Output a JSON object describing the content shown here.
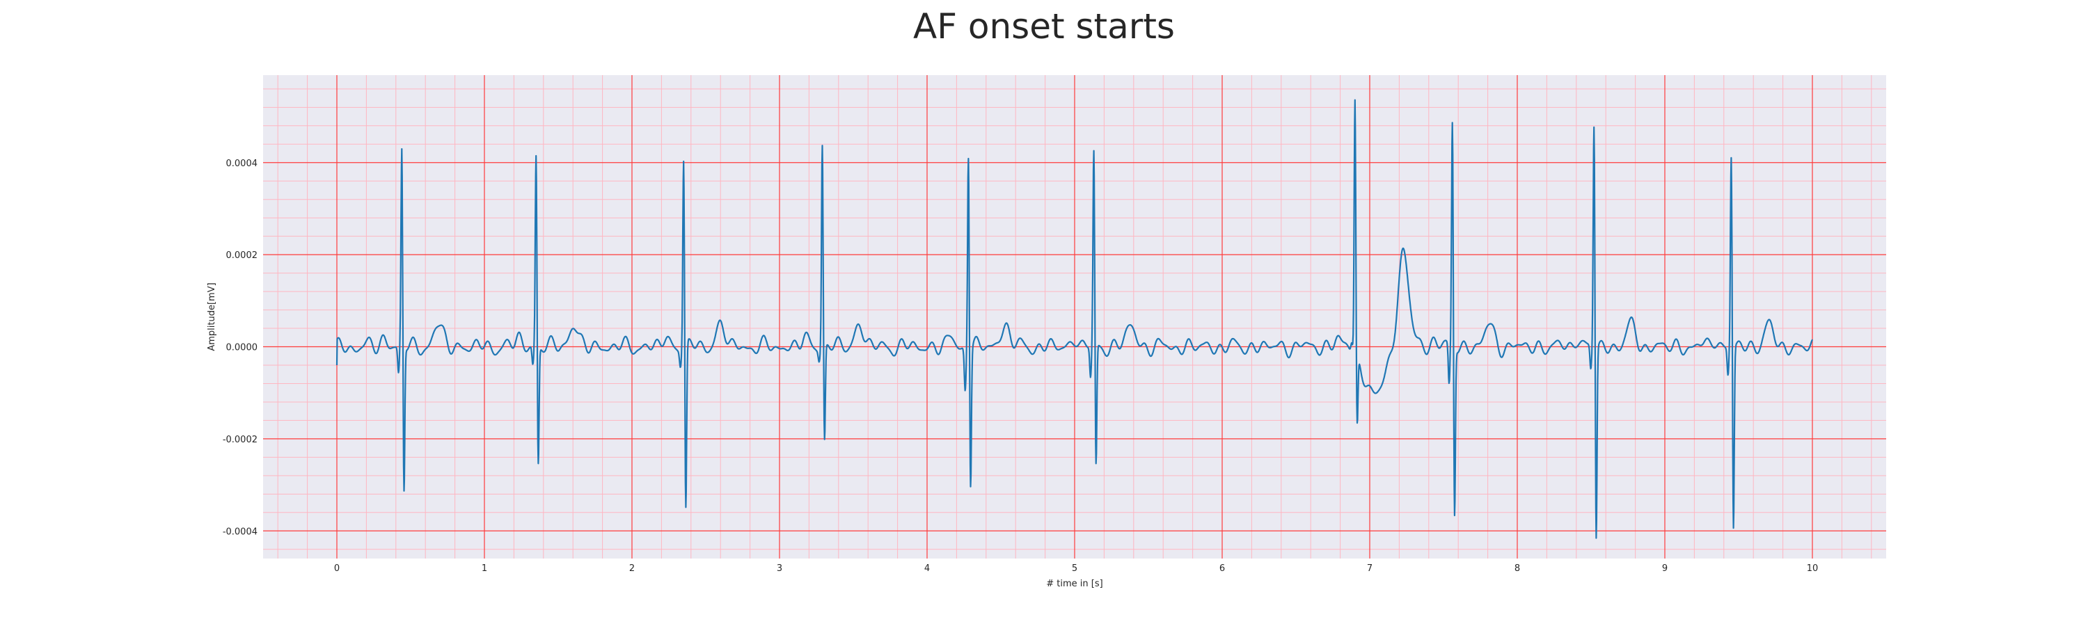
{
  "chart_data": {
    "type": "line",
    "title": "AF onset starts",
    "xlabel": "# time in [s]",
    "ylabel": "Amplitude[mV]",
    "xlim": [
      -0.5,
      10.5
    ],
    "ylim": [
      -0.00046,
      0.00059
    ],
    "x_major_ticks": [
      0,
      1,
      2,
      3,
      4,
      5,
      6,
      7,
      8,
      9,
      10
    ],
    "x_tick_labels": [
      "0",
      "1",
      "2",
      "3",
      "4",
      "5",
      "6",
      "7",
      "8",
      "9",
      "10"
    ],
    "y_major_ticks": [
      -0.0004,
      -0.0002,
      0.0,
      0.0002,
      0.0004
    ],
    "y_tick_labels": [
      "-0.0004",
      "-0.0002",
      "0.0000",
      "0.0002",
      "0.0004"
    ],
    "grid": "major and minor",
    "colors": {
      "background": "#eaeaf2",
      "line": "#1f77b4",
      "major_grid": "#ff3b3b",
      "minor_grid": "#ffb6c1"
    },
    "beats": [
      {
        "r_time": 0.44,
        "r_peak": 0.00043,
        "s_trough": -0.00032,
        "q": -6e-05
      },
      {
        "r_time": 1.35,
        "r_peak": 0.00042,
        "s_trough": -0.00026,
        "q": -4e-05
      },
      {
        "r_time": 2.35,
        "r_peak": 0.00042,
        "s_trough": -0.00036,
        "q": -3e-05
      },
      {
        "r_time": 3.29,
        "r_peak": 0.00045,
        "s_trough": -0.00021,
        "q": -2e-05
      },
      {
        "r_time": 4.28,
        "r_peak": 0.00043,
        "s_trough": -0.0003,
        "q": -9e-05
      },
      {
        "r_time": 5.13,
        "r_peak": 0.00042,
        "s_trough": -0.00027,
        "q": -7e-05
      },
      {
        "r_time": 6.9,
        "r_peak": 0.00055,
        "s_trough": -0.00016,
        "q": 2e-05
      },
      {
        "r_time": 7.56,
        "r_peak": 0.00049,
        "s_trough": -0.00037,
        "q": -9e-05
      },
      {
        "r_time": 8.52,
        "r_peak": 0.00049,
        "s_trough": -0.00042,
        "q": -5e-05
      },
      {
        "r_time": 9.45,
        "r_peak": 0.00042,
        "s_trough": -0.0004,
        "q": -6e-05
      }
    ]
  }
}
